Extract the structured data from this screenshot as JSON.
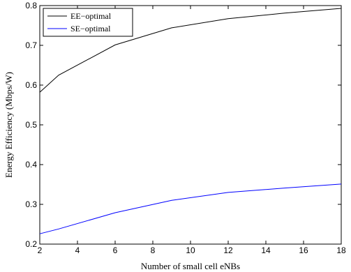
{
  "chart_data": {
    "type": "line",
    "xlabel": "Number of small cell eNBs",
    "ylabel": "Energy Efficiency (Mbps/W)",
    "xlim": [
      2,
      18
    ],
    "ylim": [
      0.2,
      0.8
    ],
    "x_ticks": [
      2,
      4,
      6,
      8,
      10,
      12,
      14,
      16,
      18
    ],
    "y_ticks": [
      0.2,
      0.3,
      0.4,
      0.5,
      0.6,
      0.7,
      0.8
    ],
    "grid": false,
    "legend_position": "top-left",
    "series": [
      {
        "name": "EE−optimal",
        "color": "#000000",
        "x": [
          2,
          3,
          6,
          9,
          12,
          15,
          18
        ],
        "y": [
          0.582,
          0.625,
          0.701,
          0.744,
          0.767,
          0.781,
          0.793
        ]
      },
      {
        "name": "SE−optimal",
        "color": "#0000ff",
        "x": [
          2,
          3,
          6,
          9,
          12,
          15,
          18
        ],
        "y": [
          0.226,
          0.238,
          0.279,
          0.31,
          0.33,
          0.341,
          0.351
        ]
      }
    ]
  }
}
